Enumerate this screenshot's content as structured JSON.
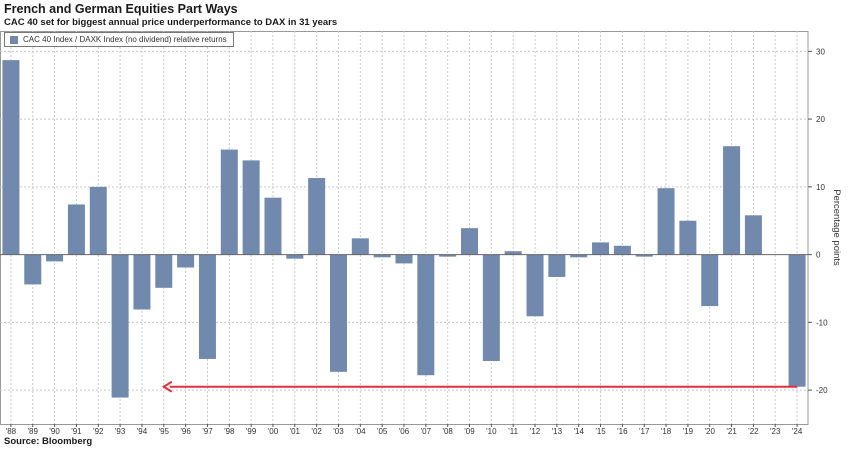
{
  "title": "French and German Equities Part Ways",
  "subtitle": "CAC 40 set for biggest annual price underperformance to DAX in 31 years",
  "source": "Source: Bloomberg",
  "colors": {
    "bar": "#7189ad",
    "arrow": "#e0303f",
    "grid": "#c8c8c8"
  },
  "chart_data": {
    "type": "bar",
    "title": "French and German Equities Part Ways",
    "subtitle": "CAC 40 set for biggest annual price underperformance to DAX in 31 years",
    "ylabel": "Percentage points",
    "y_axis_side": "right",
    "ylim": [
      -25,
      33
    ],
    "yticks": [
      -20,
      -10,
      0,
      10,
      20,
      30
    ],
    "grid": true,
    "legend_position": "top-left",
    "categories": [
      "'88",
      "'89",
      "'90",
      "'91",
      "'92",
      "'93",
      "'94",
      "'95",
      "'96",
      "'97",
      "'98",
      "'99",
      "'00",
      "'01",
      "'02",
      "'03",
      "'04",
      "'05",
      "'06",
      "'07",
      "'08",
      "'09",
      "'10",
      "'11",
      "'12",
      "'13",
      "'14",
      "'15",
      "'16",
      "'17",
      "'18",
      "'19",
      "'20",
      "'21",
      "'22",
      "'23",
      "'24"
    ],
    "series": [
      {
        "name": "CAC 40 Index / DAXK Index (no dividend) relative returns",
        "values": [
          28.7,
          -4.4,
          -1.0,
          7.4,
          10.0,
          -21.1,
          -8.1,
          -4.9,
          -1.9,
          -15.4,
          15.5,
          13.9,
          8.4,
          -0.6,
          11.3,
          -17.3,
          2.4,
          -0.4,
          -1.3,
          -17.8,
          -0.3,
          3.9,
          -15.7,
          0.5,
          -9.1,
          -3.3,
          -0.4,
          1.8,
          1.3,
          -0.3,
          9.8,
          5.0,
          -7.6,
          16.0,
          5.8,
          0.0,
          -19.5
        ]
      }
    ],
    "annotations": [
      {
        "type": "arrow",
        "from_category": "'24",
        "to_category": "'95",
        "y": -19.5
      }
    ]
  }
}
